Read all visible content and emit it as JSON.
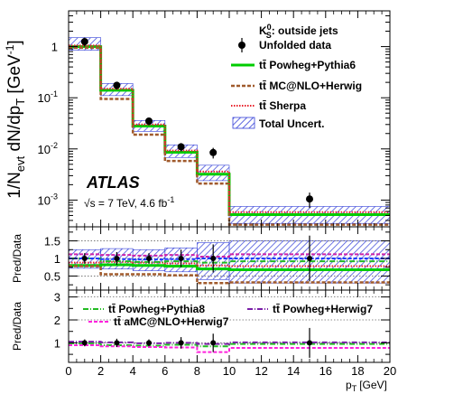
{
  "chart_data": {
    "type": "line",
    "x_label": "p",
    "x_label_sub": "T",
    "x_label_unit": "[GeV]",
    "xlim": [
      0,
      20
    ],
    "x_ticks": [
      0,
      2,
      4,
      6,
      8,
      10,
      12,
      14,
      16,
      18,
      20
    ],
    "bins": [
      [
        0,
        2
      ],
      [
        2,
        4
      ],
      [
        4,
        6
      ],
      [
        6,
        8
      ],
      [
        8,
        10
      ],
      [
        10,
        20
      ]
    ],
    "annotations": {
      "atlas": "ATLAS",
      "energy": "√s = 7 TeV, 4.6 fb",
      "energy_sup": "-1"
    },
    "main_panel": {
      "y_label": "1/N",
      "y_label_sub": "evt",
      "y_label_mid": " dN/dp",
      "y_label_sub2": "T",
      "y_label_unit": " [GeV",
      "y_label_sup": "-1",
      "y_label_end": "]",
      "y_scale": "log",
      "ylim": [
        0.0003,
        5
      ],
      "y_tick_labels": [
        {
          "base": "10",
          "exp": "-3",
          "value": 0.001
        },
        {
          "base": "10",
          "exp": "-2",
          "value": 0.01
        },
        {
          "base": "10",
          "exp": "-1",
          "value": 0.1
        },
        {
          "base": "1",
          "exp": "",
          "value": 1
        }
      ],
      "legend_title": "K",
      "legend_title_sup": "0",
      "legend_title_sub": "S",
      "legend_title_rest": ": outside jets",
      "data": {
        "name": "Unfolded data",
        "x": [
          1,
          3,
          5,
          7,
          9,
          15
        ],
        "y": [
          1.25,
          0.175,
          0.035,
          0.011,
          0.0085,
          0.00105
        ],
        "yerr_lo": [
          0.25,
          0.03,
          0.006,
          0.002,
          0.002,
          0.00035
        ],
        "yerr_hi": [
          0.25,
          0.03,
          0.006,
          0.002,
          0.002,
          0.00035
        ]
      },
      "band": {
        "name": "Total Uncert.",
        "low": [
          0.85,
          0.11,
          0.022,
          0.0068,
          0.0024,
          0.00035
        ],
        "high": [
          1.5,
          0.19,
          0.036,
          0.012,
          0.0048,
          0.00075
        ]
      },
      "series": [
        {
          "name": "tt̄ Powheg+Pythia6",
          "color": "#00cc00",
          "dash": "",
          "width": 3,
          "values": [
            1.0,
            0.14,
            0.028,
            0.0086,
            0.0032,
            0.00052
          ]
        },
        {
          "name": "tt̄ MC@NLO+Herwig",
          "color": "#a05a2c",
          "dash": "4,2",
          "width": 2.5,
          "values": [
            0.95,
            0.095,
            0.019,
            0.0058,
            0.0021,
            0.00033
          ]
        },
        {
          "name": "tt̄ Sherpa",
          "color": "#e8202a",
          "dash": "1.5,1.5",
          "width": 2,
          "values": [
            1.05,
            0.15,
            0.03,
            0.0093,
            0.0036,
            0.00058
          ]
        }
      ]
    },
    "ratio_panel_1": {
      "y_label": "Pred/Data",
      "ylim": [
        0.1,
        1.9
      ],
      "y_ticks": [
        0.5,
        1,
        1.5
      ],
      "band_low": [
        0.72,
        0.7,
        0.65,
        0.62,
        0.4,
        0.3
      ],
      "band_high": [
        1.25,
        1.28,
        1.25,
        1.3,
        1.45,
        1.5
      ],
      "data_err": [
        0.15,
        0.18,
        0.15,
        0.25,
        0.4,
        0.65
      ],
      "series": [
        {
          "color": "#00cc00",
          "dash": "",
          "width": 3,
          "values": [
            0.8,
            0.82,
            0.8,
            0.78,
            0.7,
            0.68
          ]
        },
        {
          "color": "#a05a2c",
          "dash": "4,2",
          "width": 2.5,
          "values": [
            0.78,
            0.55,
            0.55,
            0.52,
            0.3,
            0.32
          ]
        },
        {
          "color": "#e8202a",
          "dash": "1.5,1.5",
          "width": 2,
          "values": [
            0.88,
            0.9,
            0.88,
            0.86,
            0.8,
            0.78
          ]
        },
        {
          "color": "#22bb22",
          "dash": "6,2,1,2",
          "width": 2,
          "values": [
            1.0,
            0.92,
            0.9,
            0.92,
            0.88,
            0.92
          ]
        },
        {
          "color": "#cc22aa",
          "dash": "4,2",
          "width": 2,
          "values": [
            1.12,
            1.1,
            1.08,
            1.1,
            1.05,
            1.12
          ]
        },
        {
          "color": "#1a3cff",
          "dash": "4,2",
          "width": 2,
          "values": [
            1.0,
            0.98,
            0.97,
            0.98,
            1.0,
            1.0
          ]
        }
      ]
    },
    "ratio_panel_2": {
      "y_label": "Pred/Data",
      "ylim": [
        0.15,
        3.3
      ],
      "y_ticks": [
        1,
        2,
        3
      ],
      "data_err": [
        0.15,
        0.18,
        0.15,
        0.25,
        0.4,
        0.65
      ],
      "legend": [
        {
          "name": "tt̄ Powheg+Pythia8",
          "color": "#22bb22",
          "dash": "6,2,1,2"
        },
        {
          "name": "tt̄ Powheg+Herwig7",
          "color": "#7a1fa8",
          "dash": "6,2,1,2"
        },
        {
          "name": "tt̄ aMC@NLO+Herwig7",
          "color": "#ff22dd",
          "dash": "4,2"
        }
      ],
      "series": [
        {
          "color": "#22bb22",
          "dash": "6,2,1,2",
          "width": 2,
          "values": [
            0.98,
            0.9,
            0.88,
            0.92,
            0.85,
            0.95
          ]
        },
        {
          "color": "#7a1fa8",
          "dash": "6,2,1,2",
          "width": 2,
          "values": [
            1.05,
            1.02,
            0.98,
            1.0,
            0.95,
            1.02
          ]
        },
        {
          "color": "#ff22dd",
          "dash": "4,2",
          "width": 2,
          "values": [
            0.9,
            0.85,
            0.82,
            0.8,
            0.6,
            0.78
          ]
        }
      ]
    }
  }
}
